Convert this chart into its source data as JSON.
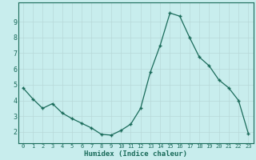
{
  "x": [
    0,
    1,
    2,
    3,
    4,
    5,
    6,
    7,
    8,
    9,
    10,
    11,
    12,
    13,
    14,
    15,
    16,
    17,
    18,
    19,
    20,
    21,
    22,
    23
  ],
  "y": [
    4.8,
    4.1,
    3.5,
    3.8,
    3.2,
    2.85,
    2.55,
    2.25,
    1.85,
    1.8,
    2.1,
    2.5,
    3.5,
    5.8,
    7.5,
    9.55,
    9.35,
    8.0,
    6.75,
    6.2,
    5.3,
    4.8,
    4.0,
    1.9
  ],
  "xlabel": "Humidex (Indice chaleur)",
  "xlim": [
    -0.5,
    23.5
  ],
  "ylim": [
    1.3,
    10.2
  ],
  "yticks": [
    2,
    3,
    4,
    5,
    6,
    7,
    8,
    9
  ],
  "xticks": [
    0,
    1,
    2,
    3,
    4,
    5,
    6,
    7,
    8,
    9,
    10,
    11,
    12,
    13,
    14,
    15,
    16,
    17,
    18,
    19,
    20,
    21,
    22,
    23
  ],
  "bg_color": "#c8eded",
  "grid_color_minor": "#c0e4e4",
  "grid_color_major": "#b8d8d8",
  "line_color": "#1a6b5a",
  "tick_color": "#1a6b5a",
  "label_color": "#1a6b5a",
  "border_color": "#1a6b5a"
}
